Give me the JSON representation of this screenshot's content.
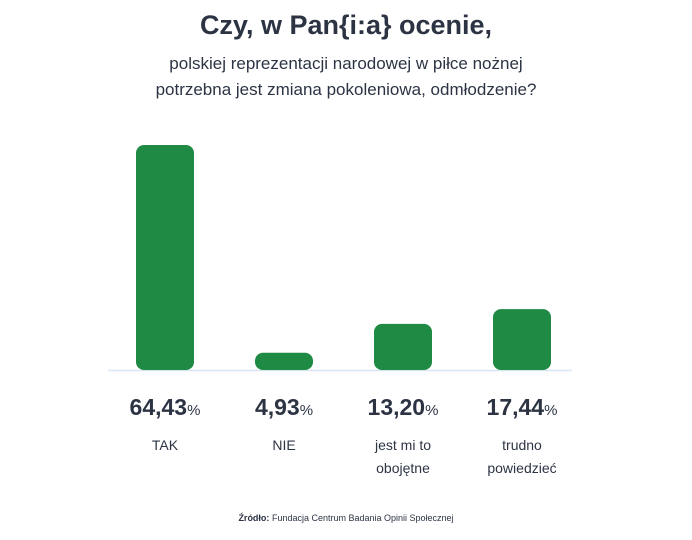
{
  "title": "Czy, w Pan{i:a} ocenie,",
  "subtitle_line1": "polskiej reprezentacji narodowej w piłce nożnej",
  "subtitle_line2": "potrzebna jest zmiana pokoleniowa, odmłodzenie?",
  "source_label": "Źródło:",
  "source_text": "Fundacja Centrum Badania Opinii Społecznej",
  "colors": {
    "bar": "#1f8a43",
    "axis": "#d7e6f2",
    "text": "#2c3444"
  },
  "chart_data": {
    "type": "bar",
    "categories": [
      "TAK",
      "NIE",
      "jest mi to obojętne",
      "trudno powiedzieć"
    ],
    "category_lines": [
      [
        "TAK"
      ],
      [
        "NIE"
      ],
      [
        "jest mi to",
        "obojętne"
      ],
      [
        "trudno",
        "powiedzieć"
      ]
    ],
    "values": [
      64.43,
      4.93,
      13.2,
      17.44
    ],
    "value_labels": [
      "64,43",
      "4,93",
      "13,20",
      "17,44"
    ],
    "unit": "%",
    "ylim": [
      0,
      64.43
    ],
    "grid": false,
    "title": "Czy, w Pan{i:a} ocenie,"
  }
}
